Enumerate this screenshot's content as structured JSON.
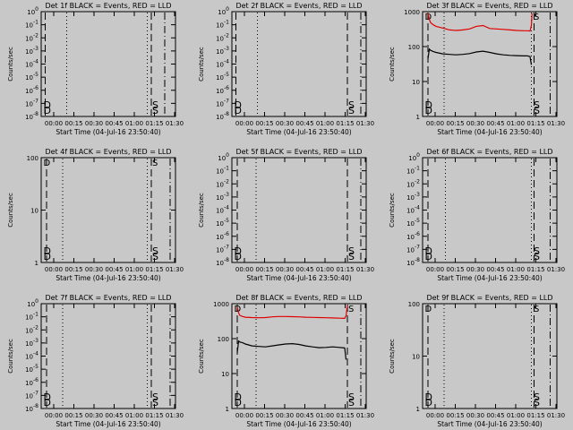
{
  "page": {
    "background": "#c8c8c8",
    "trace_colors": {
      "events": "#000000",
      "lld": "#e00000"
    }
  },
  "chart_data": [
    {
      "type": "line",
      "panel": "1f",
      "title": "Det 1f BLACK = Events, RED = LLD",
      "ylabel": "Counts/sec",
      "xlabel": "Start Time (04-Jul-16 23:50:40)",
      "yscale": "log",
      "ytick_labels": [
        "10^-8",
        "10^-7",
        "10^-6",
        "10^-5",
        "10^-4",
        "10^-3",
        "10^-2",
        "10^-1",
        "10^0"
      ],
      "ytick_values": [
        1e-08,
        1e-07,
        1e-06,
        1e-05,
        0.0001,
        0.001,
        0.01,
        0.1,
        1
      ],
      "ylim": [
        1e-08,
        1
      ],
      "xlim": [
        0,
        100
      ],
      "xtick_labels": [
        "00:00",
        "00:15",
        "00:30",
        "00:45",
        "01:00",
        "01:15",
        "01:30"
      ],
      "xtick_values": [
        9.33,
        24.33,
        39.33,
        54.33,
        69.33,
        84.33,
        99.33
      ],
      "vlines": [
        {
          "x": 3,
          "style": "dash"
        },
        {
          "x": 19,
          "style": "dot"
        },
        {
          "x": 79,
          "style": "dot"
        },
        {
          "x": 82,
          "style": "dash"
        },
        {
          "x": 92,
          "style": "dashdot"
        }
      ],
      "markers": [
        {
          "x": 1,
          "label": "D"
        },
        {
          "x": 82,
          "label": "S"
        }
      ],
      "series": []
    },
    {
      "type": "line",
      "panel": "2f",
      "title": "Det 2f BLACK = Events, RED = LLD",
      "ylabel": "Counts/sec",
      "xlabel": "Start Time (04-Jul-16 23:50:40)",
      "yscale": "log",
      "ytick_labels": [
        "10^-8",
        "10^-7",
        "10^-6",
        "10^-5",
        "10^-4",
        "10^-3",
        "10^-2",
        "10^-1",
        "10^0"
      ],
      "ytick_values": [
        1e-08,
        1e-07,
        1e-06,
        1e-05,
        0.0001,
        0.001,
        0.01,
        0.1,
        1
      ],
      "ylim": [
        1e-08,
        1
      ],
      "xlim": [
        0,
        100
      ],
      "xtick_labels": [
        "00:00",
        "00:15",
        "00:30",
        "00:45",
        "01:00",
        "01:15",
        "01:30"
      ],
      "xtick_values": [
        9.33,
        24.33,
        39.33,
        54.33,
        69.33,
        84.33,
        99.33
      ],
      "vlines": [
        {
          "x": 3,
          "style": "dash"
        },
        {
          "x": 19,
          "style": "dot"
        },
        {
          "x": 86,
          "style": "dash"
        },
        {
          "x": 96,
          "style": "dashdot"
        }
      ],
      "markers": [
        {
          "x": 1,
          "label": "D"
        },
        {
          "x": 86,
          "label": "S"
        }
      ],
      "series": []
    },
    {
      "type": "line",
      "panel": "3f",
      "title": "Det 3f BLACK = Events, RED = LLD",
      "ylabel": "Counts/sec",
      "xlabel": "Start Time (04-Jul-16 23:50:40)",
      "yscale": "log",
      "ytick_labels": [
        "1",
        "10",
        "100",
        "1000"
      ],
      "ytick_values": [
        1,
        10,
        100,
        1000
      ],
      "ylim": [
        1,
        1000
      ],
      "xlim": [
        0,
        100
      ],
      "xtick_labels": [
        "00:00",
        "00:15",
        "00:30",
        "00:45",
        "01:00",
        "01:15",
        "01:30"
      ],
      "xtick_values": [
        9.33,
        24.33,
        39.33,
        54.33,
        69.33,
        84.33,
        99.33
      ],
      "vlines": [
        {
          "x": 4,
          "style": "dash"
        },
        {
          "x": 16,
          "style": "dot"
        },
        {
          "x": 81,
          "style": "dot"
        },
        {
          "x": 83,
          "style": "dash"
        },
        {
          "x": 95,
          "style": "dashdot"
        }
      ],
      "markers": [
        {
          "x": 1,
          "label": "D"
        },
        {
          "x": 82,
          "label": "S"
        }
      ],
      "series": [
        {
          "name": "LLD",
          "color": "#e00000",
          "x": [
            4,
            5,
            6,
            8,
            10,
            15,
            20,
            25,
            30,
            35,
            40,
            45,
            50,
            55,
            60,
            65,
            70,
            75,
            78,
            80,
            81,
            81.5
          ],
          "y": [
            900,
            600,
            480,
            420,
            380,
            340,
            300,
            290,
            300,
            320,
            380,
            400,
            330,
            320,
            310,
            300,
            290,
            285,
            285,
            280,
            400,
            900
          ]
        },
        {
          "name": "Events",
          "color": "#000000",
          "x": [
            4,
            5,
            6,
            8,
            10,
            15,
            20,
            25,
            30,
            35,
            40,
            45,
            50,
            55,
            60,
            65,
            70,
            75,
            78,
            80,
            81
          ],
          "y": [
            45,
            85,
            78,
            72,
            68,
            62,
            60,
            58,
            60,
            63,
            70,
            74,
            68,
            62,
            58,
            56,
            55,
            54,
            54,
            52,
            30
          ]
        }
      ]
    },
    {
      "type": "line",
      "panel": "4f",
      "title": "Det 4f BLACK = Events, RED = LLD",
      "ylabel": "Counts/sec",
      "xlabel": "Start Time (04-Jul-16 23:50:40)",
      "yscale": "log",
      "ytick_labels": [
        "1",
        "10",
        "100"
      ],
      "ytick_values": [
        1,
        10,
        100
      ],
      "ylim": [
        1,
        100
      ],
      "xlim": [
        0,
        100
      ],
      "xtick_labels": [
        "00:00",
        "00:15",
        "00:30",
        "00:45",
        "01:00",
        "01:15",
        "01:30"
      ],
      "xtick_values": [
        9.33,
        24.33,
        39.33,
        54.33,
        69.33,
        84.33,
        99.33
      ],
      "vlines": [
        {
          "x": 4,
          "style": "dash"
        },
        {
          "x": 16,
          "style": "dot"
        },
        {
          "x": 79,
          "style": "dot"
        },
        {
          "x": 82,
          "style": "dash"
        },
        {
          "x": 96,
          "style": "dashdot"
        }
      ],
      "markers": [
        {
          "x": 1,
          "label": "D"
        },
        {
          "x": 82,
          "label": "S"
        }
      ],
      "series": []
    },
    {
      "type": "line",
      "panel": "5f",
      "title": "Det 5f BLACK = Events, RED = LLD",
      "ylabel": "Counts/sec",
      "xlabel": "Start Time (04-Jul-16 23:50:40)",
      "yscale": "log",
      "ytick_labels": [
        "10^-8",
        "10^-7",
        "10^-6",
        "10^-5",
        "10^-4",
        "10^-3",
        "10^-2",
        "10^-1",
        "10^0"
      ],
      "ytick_values": [
        1e-08,
        1e-07,
        1e-06,
        1e-05,
        0.0001,
        0.001,
        0.01,
        0.1,
        1
      ],
      "ylim": [
        1e-08,
        1
      ],
      "xlim": [
        0,
        100
      ],
      "xtick_labels": [
        "00:00",
        "00:15",
        "00:30",
        "00:45",
        "01:00",
        "01:15",
        "01:30"
      ],
      "xtick_values": [
        9.33,
        24.33,
        39.33,
        54.33,
        69.33,
        84.33,
        99.33
      ],
      "vlines": [
        {
          "x": 4,
          "style": "dash"
        },
        {
          "x": 18,
          "style": "dot"
        },
        {
          "x": 86,
          "style": "dash"
        },
        {
          "x": 96,
          "style": "dashdot"
        }
      ],
      "markers": [
        {
          "x": 1,
          "label": "D"
        },
        {
          "x": 86,
          "label": "S"
        }
      ],
      "series": []
    },
    {
      "type": "line",
      "panel": "6f",
      "title": "Det 6f BLACK = Events, RED = LLD",
      "ylabel": "Counts/sec",
      "xlabel": "Start Time (04-Jul-16 23:50:40)",
      "yscale": "log",
      "ytick_labels": [
        "10^-8",
        "10^-7",
        "10^-6",
        "10^-5",
        "10^-4",
        "10^-3",
        "10^-2",
        "10^-1",
        "10^0"
      ],
      "ytick_values": [
        1e-08,
        1e-07,
        1e-06,
        1e-05,
        0.0001,
        0.001,
        0.01,
        0.1,
        1
      ],
      "ylim": [
        1e-08,
        1
      ],
      "xlim": [
        0,
        100
      ],
      "xtick_labels": [
        "00:00",
        "00:15",
        "00:30",
        "00:45",
        "01:00",
        "01:15",
        "01:30"
      ],
      "xtick_values": [
        9.33,
        24.33,
        39.33,
        54.33,
        69.33,
        84.33,
        99.33
      ],
      "vlines": [
        {
          "x": 4,
          "style": "dash"
        },
        {
          "x": 17,
          "style": "dot"
        },
        {
          "x": 81,
          "style": "dot"
        },
        {
          "x": 83,
          "style": "dash"
        },
        {
          "x": 95,
          "style": "dashdot"
        }
      ],
      "markers": [
        {
          "x": 1,
          "label": "D"
        },
        {
          "x": 82,
          "label": "S"
        }
      ],
      "series": []
    },
    {
      "type": "line",
      "panel": "7f",
      "title": "Det 7f BLACK = Events, RED = LLD",
      "ylabel": "Counts/sec",
      "xlabel": "Start Time (04-Jul-16 23:50:40)",
      "yscale": "log",
      "ytick_labels": [
        "10^-8",
        "10^-7",
        "10^-6",
        "10^-5",
        "10^-4",
        "10^-3",
        "10^-2",
        "10^-1",
        "10^0"
      ],
      "ytick_values": [
        1e-08,
        1e-07,
        1e-06,
        1e-05,
        0.0001,
        0.001,
        0.01,
        0.1,
        1
      ],
      "ylim": [
        1e-08,
        1
      ],
      "xlim": [
        0,
        100
      ],
      "xtick_labels": [
        "00:00",
        "00:15",
        "00:30",
        "00:45",
        "01:00",
        "01:15",
        "01:30"
      ],
      "xtick_values": [
        9.33,
        24.33,
        39.33,
        54.33,
        69.33,
        84.33,
        99.33
      ],
      "vlines": [
        {
          "x": 4,
          "style": "dash"
        },
        {
          "x": 16,
          "style": "dot"
        },
        {
          "x": 79,
          "style": "dot"
        },
        {
          "x": 82,
          "style": "dash"
        },
        {
          "x": 96,
          "style": "dashdot"
        }
      ],
      "markers": [
        {
          "x": 1,
          "label": "D"
        },
        {
          "x": 82,
          "label": "S"
        }
      ],
      "series": []
    },
    {
      "type": "line",
      "panel": "8f",
      "title": "Det 8f BLACK = Events, RED = LLD",
      "ylabel": "Counts/sec",
      "xlabel": "Start Time (04-Jul-16 23:50:40)",
      "yscale": "log",
      "ytick_labels": [
        "1",
        "10",
        "100",
        "1000"
      ],
      "ytick_values": [
        1,
        10,
        100,
        1000
      ],
      "ylim": [
        1,
        1000
      ],
      "xlim": [
        0,
        100
      ],
      "xtick_labels": [
        "00:00",
        "00:15",
        "00:30",
        "00:45",
        "01:00",
        "01:15",
        "01:30"
      ],
      "xtick_values": [
        9.33,
        24.33,
        39.33,
        54.33,
        69.33,
        84.33,
        99.33
      ],
      "vlines": [
        {
          "x": 4,
          "style": "dash"
        },
        {
          "x": 18,
          "style": "dot"
        },
        {
          "x": 86,
          "style": "dash"
        },
        {
          "x": 96,
          "style": "dashdot"
        }
      ],
      "markers": [
        {
          "x": 1,
          "label": "D"
        },
        {
          "x": 86,
          "label": "S"
        }
      ],
      "series": [
        {
          "name": "LLD",
          "color": "#e00000",
          "x": [
            4,
            5,
            6,
            8,
            10,
            15,
            20,
            25,
            30,
            35,
            40,
            45,
            50,
            55,
            60,
            65,
            70,
            75,
            80,
            84,
            85,
            86
          ],
          "y": [
            800,
            550,
            460,
            430,
            410,
            400,
            395,
            400,
            420,
            430,
            430,
            425,
            420,
            410,
            405,
            400,
            395,
            390,
            385,
            380,
            450,
            900
          ]
        },
        {
          "name": "Events",
          "color": "#000000",
          "x": [
            4,
            5,
            6,
            8,
            10,
            15,
            20,
            25,
            30,
            35,
            40,
            45,
            50,
            55,
            60,
            65,
            70,
            75,
            80,
            84,
            85
          ],
          "y": [
            40,
            85,
            80,
            76,
            70,
            62,
            60,
            58,
            62,
            66,
            70,
            72,
            68,
            62,
            58,
            55,
            56,
            58,
            56,
            54,
            25
          ]
        }
      ]
    },
    {
      "type": "line",
      "panel": "9f",
      "title": "Det 9f BLACK = Events, RED = LLD",
      "ylabel": "Counts/sec",
      "xlabel": "Start Time (04-Jul-16 23:50:40)",
      "yscale": "log",
      "ytick_labels": [
        "1",
        "10",
        "100"
      ],
      "ytick_values": [
        1,
        10,
        100
      ],
      "ylim": [
        1,
        100
      ],
      "xlim": [
        0,
        100
      ],
      "xtick_labels": [
        "00:00",
        "00:15",
        "00:30",
        "00:45",
        "01:00",
        "01:15",
        "01:30"
      ],
      "xtick_values": [
        9.33,
        24.33,
        39.33,
        54.33,
        69.33,
        84.33,
        99.33
      ],
      "vlines": [
        {
          "x": 4,
          "style": "dash"
        },
        {
          "x": 16,
          "style": "dot"
        },
        {
          "x": 81,
          "style": "dot"
        },
        {
          "x": 83,
          "style": "dash"
        },
        {
          "x": 95,
          "style": "dashdot"
        }
      ],
      "markers": [
        {
          "x": 1,
          "label": "D"
        },
        {
          "x": 82,
          "label": "S"
        }
      ],
      "series": []
    }
  ]
}
